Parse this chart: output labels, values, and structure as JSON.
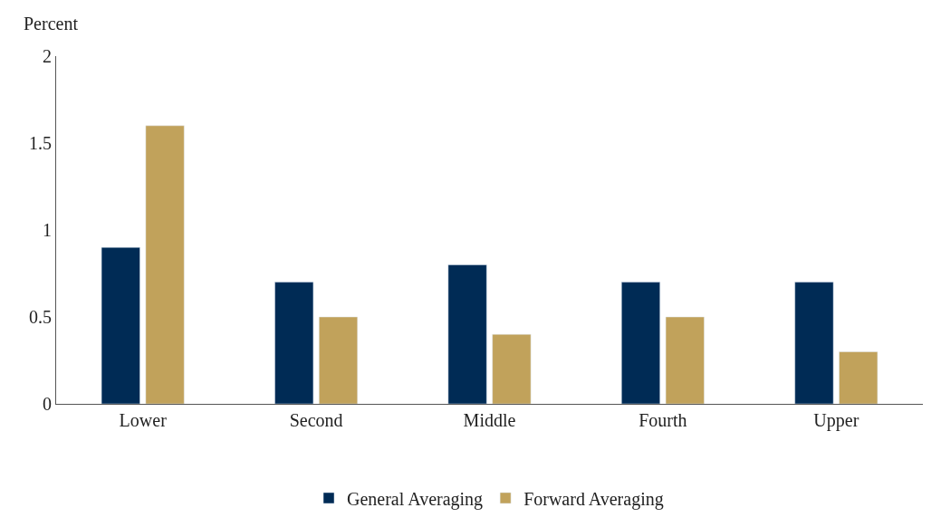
{
  "chart_data": {
    "type": "bar",
    "ylabel": "Percent",
    "categories": [
      "Lower",
      "Second",
      "Middle",
      "Fourth",
      "Upper"
    ],
    "series": [
      {
        "name": "General Averaging",
        "color": "#002b55",
        "values": [
          0.9,
          0.7,
          0.8,
          0.7,
          0.7
        ]
      },
      {
        "name": "Forward Averaging",
        "color": "#c1a25b",
        "values": [
          1.6,
          0.5,
          0.4,
          0.5,
          0.3
        ]
      }
    ],
    "ylim": [
      0,
      2
    ],
    "yticks": [
      0,
      0.5,
      1,
      1.5,
      2
    ],
    "legend": "bottom"
  }
}
